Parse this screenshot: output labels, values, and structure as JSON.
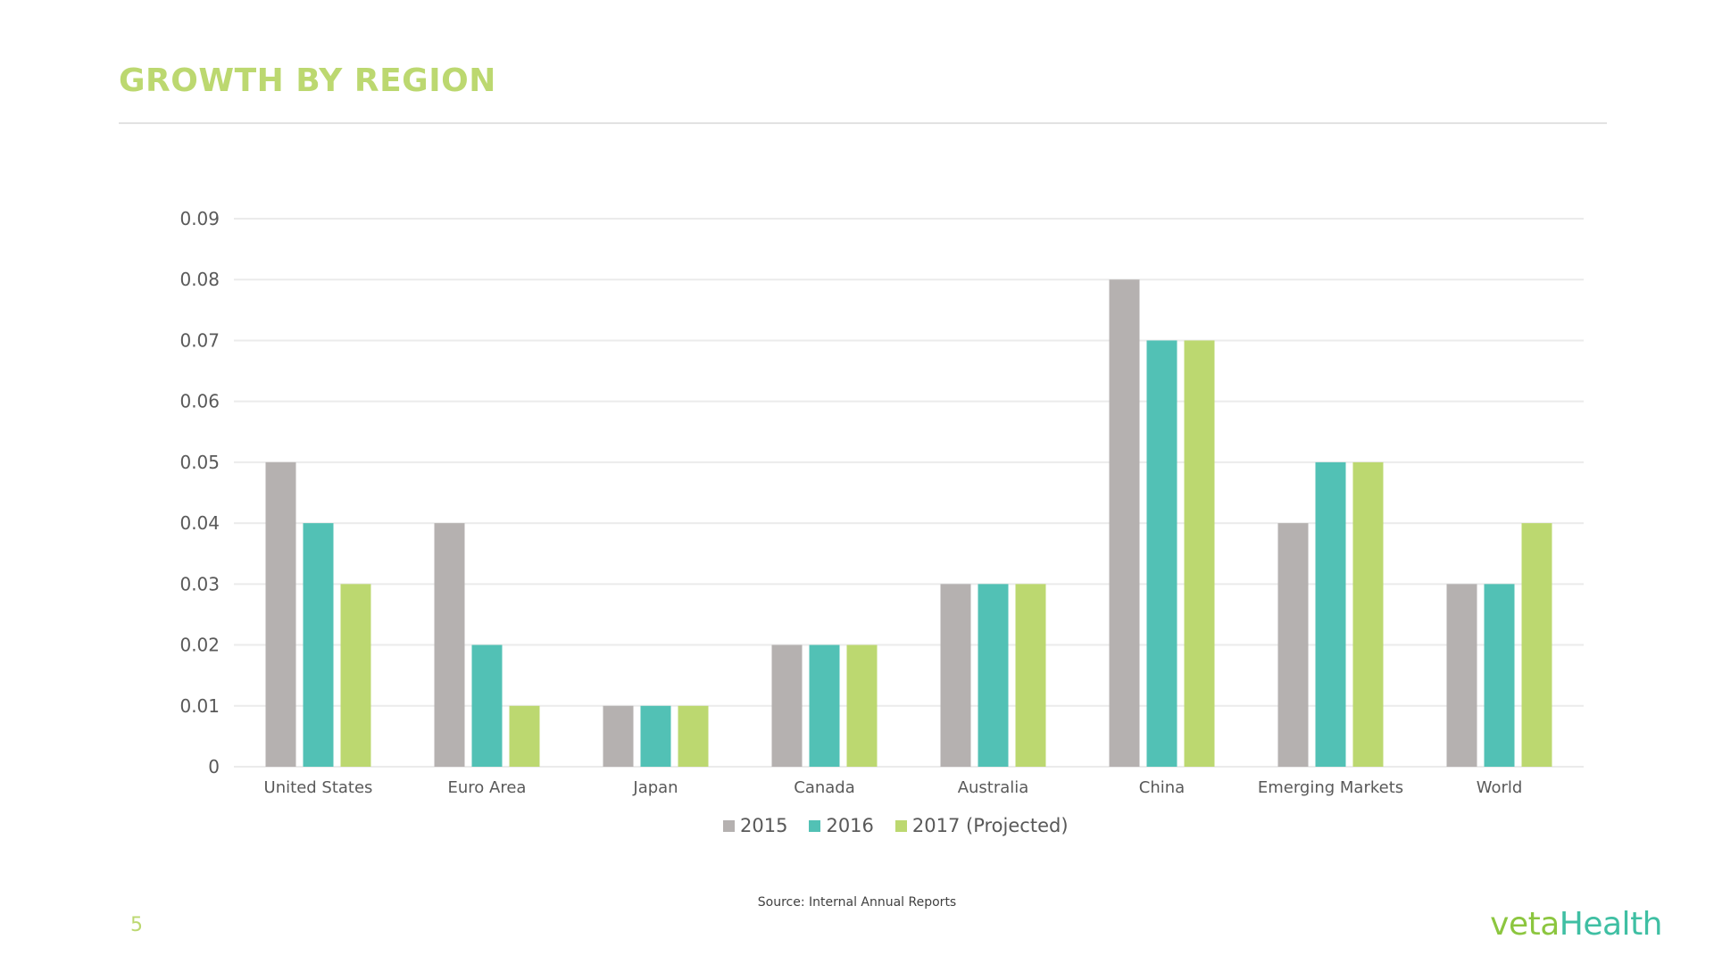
{
  "slide": {
    "title": "GROWTH BY REGION",
    "source": "Source: Internal Annual Reports",
    "page_number": "5",
    "logo": {
      "part1": "veta",
      "part2": "Health"
    }
  },
  "colors": {
    "title": "#bcd870",
    "series_2015": "#b5b1b0",
    "series_2016": "#52c1b5",
    "series_2017": "#bcd870",
    "gridline": "#ebebeb",
    "text": "#595959"
  },
  "chart_data": {
    "type": "bar",
    "title": "",
    "xlabel": "",
    "ylabel": "",
    "ylim": [
      0,
      0.09
    ],
    "yticks": [
      "0",
      "0.01",
      "0.02",
      "0.03",
      "0.04",
      "0.05",
      "0.06",
      "0.07",
      "0.08",
      "0.09"
    ],
    "grid": true,
    "legend_position": "bottom",
    "categories": [
      "United States",
      "Euro Area",
      "Japan",
      "Canada",
      "Australia",
      "China",
      "Emerging Markets",
      "World"
    ],
    "series": [
      {
        "name": "2015",
        "color": "#b5b1b0",
        "values": [
          0.05,
          0.04,
          0.01,
          0.02,
          0.03,
          0.08,
          0.04,
          0.03
        ]
      },
      {
        "name": "2016",
        "color": "#52c1b5",
        "values": [
          0.04,
          0.02,
          0.01,
          0.02,
          0.03,
          0.07,
          0.05,
          0.03
        ]
      },
      {
        "name": "2017 (Projected)",
        "color": "#bcd870",
        "values": [
          0.03,
          0.01,
          0.01,
          0.02,
          0.03,
          0.07,
          0.05,
          0.04
        ]
      }
    ]
  }
}
